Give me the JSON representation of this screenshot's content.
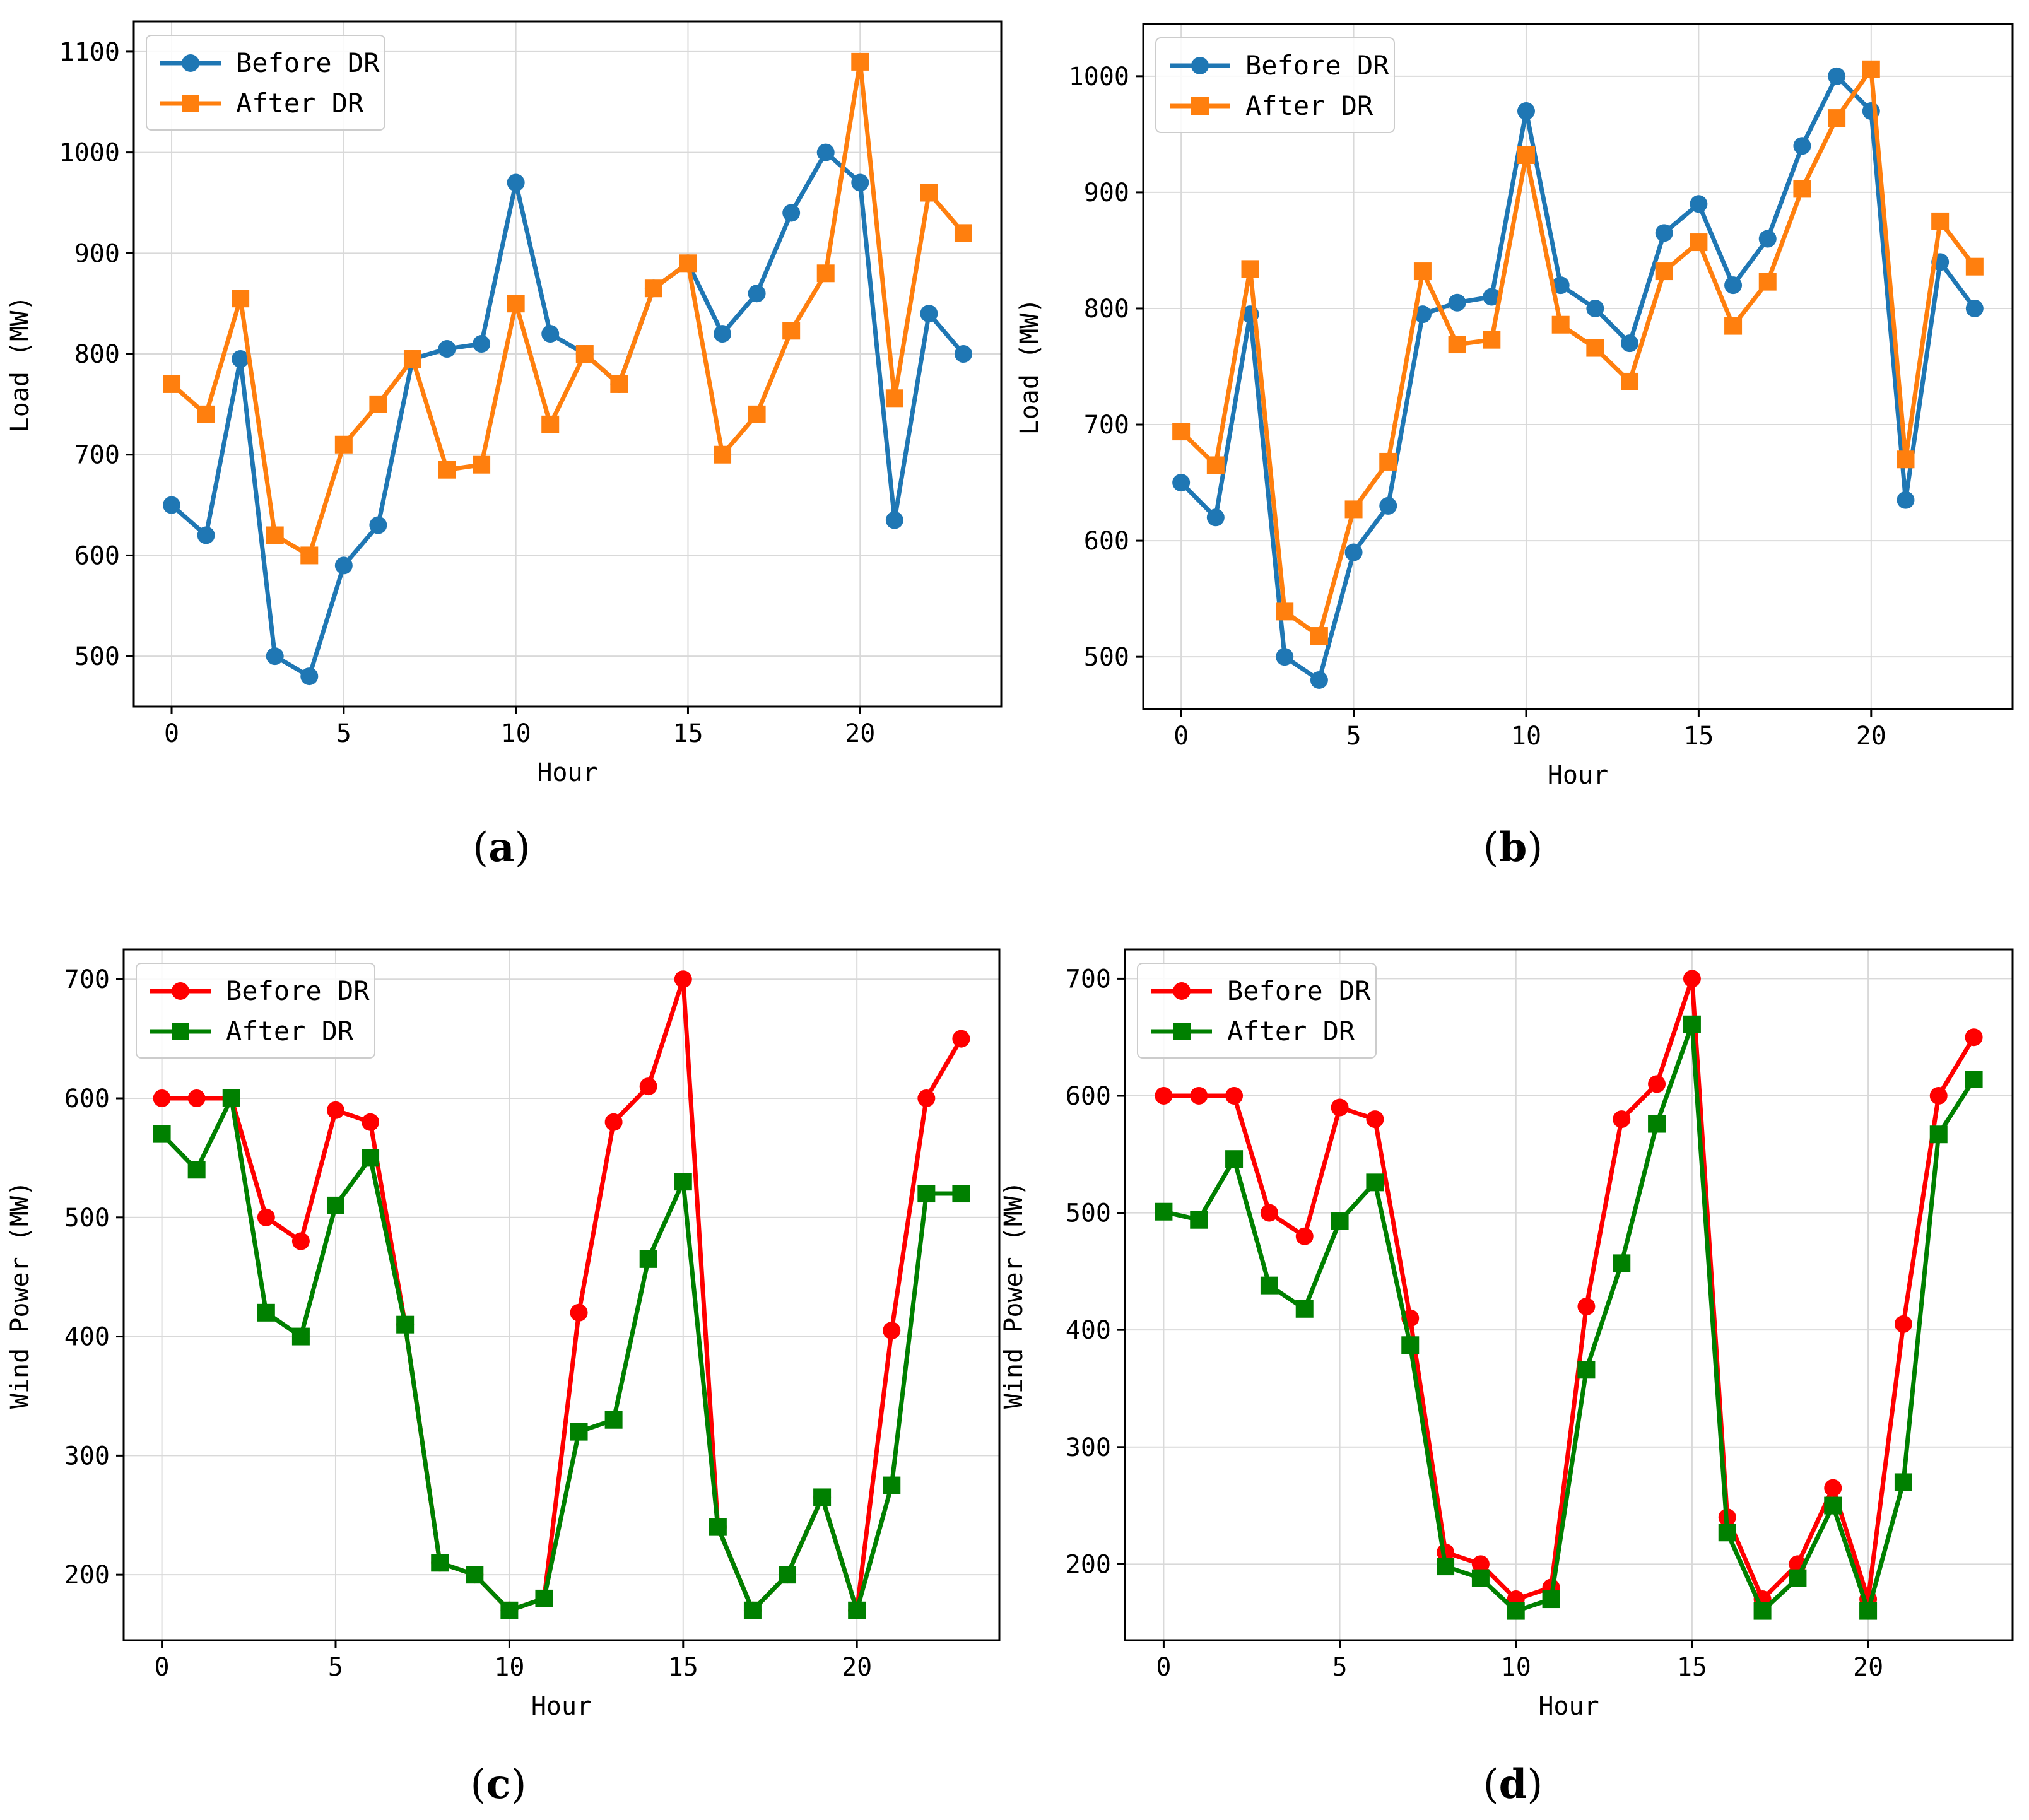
{
  "chart_data": [
    {
      "id": "a",
      "type": "line",
      "panel_label": "a",
      "title": "",
      "xlabel": "Hour",
      "ylabel": "Load (MW)",
      "xlim": [
        -1.1,
        24.1
      ],
      "ylim": [
        450,
        1130
      ],
      "xticks": [
        0,
        5,
        10,
        15,
        20
      ],
      "yticks": [
        500,
        600,
        700,
        800,
        900,
        1000,
        1100
      ],
      "grid": true,
      "legend_position": "top-left",
      "x": [
        0,
        1,
        2,
        3,
        4,
        5,
        6,
        7,
        8,
        9,
        10,
        11,
        12,
        13,
        14,
        15,
        16,
        17,
        18,
        19,
        20,
        21,
        22,
        23
      ],
      "series": [
        {
          "name": "Before DR",
          "color": "#1f77b4",
          "marker": "circle",
          "values": [
            650,
            620,
            795,
            500,
            480,
            590,
            630,
            795,
            805,
            810,
            970,
            820,
            800,
            770,
            865,
            890,
            820,
            860,
            940,
            1000,
            970,
            635,
            840,
            800
          ]
        },
        {
          "name": "After DR",
          "color": "#ff7f0e",
          "marker": "square",
          "values": [
            770,
            740,
            855,
            620,
            600,
            710,
            750,
            795,
            685,
            690,
            850,
            730,
            800,
            770,
            865,
            890,
            700,
            740,
            823,
            880,
            1090,
            756,
            960,
            920
          ]
        }
      ]
    },
    {
      "id": "b",
      "type": "line",
      "panel_label": "b",
      "title": "",
      "xlabel": "Hour",
      "ylabel": "Load (MW)",
      "xlim": [
        -1.1,
        24.1
      ],
      "ylim": [
        455,
        1045
      ],
      "xticks": [
        0,
        5,
        10,
        15,
        20
      ],
      "yticks": [
        500,
        600,
        700,
        800,
        900,
        1000
      ],
      "grid": true,
      "legend_position": "top-left",
      "x": [
        0,
        1,
        2,
        3,
        4,
        5,
        6,
        7,
        8,
        9,
        10,
        11,
        12,
        13,
        14,
        15,
        16,
        17,
        18,
        19,
        20,
        21,
        22,
        23
      ],
      "series": [
        {
          "name": "Before DR",
          "color": "#1f77b4",
          "marker": "circle",
          "values": [
            650,
            620,
            795,
            500,
            480,
            590,
            630,
            795,
            805,
            810,
            970,
            820,
            800,
            770,
            865,
            890,
            820,
            860,
            940,
            1000,
            970,
            635,
            840,
            800
          ]
        },
        {
          "name": "After DR",
          "color": "#ff7f0e",
          "marker": "square",
          "values": [
            694,
            665,
            834,
            539,
            518,
            627,
            668,
            832,
            769,
            773,
            932,
            786,
            766,
            737,
            832,
            857,
            785,
            823,
            903,
            964,
            1006,
            670,
            875,
            836
          ]
        }
      ]
    },
    {
      "id": "c",
      "type": "line",
      "panel_label": "c",
      "title": "",
      "xlabel": "Hour",
      "ylabel": "Wind Power (MW)",
      "xlim": [
        -1.1,
        24.1
      ],
      "ylim": [
        145,
        725
      ],
      "xticks": [
        0,
        5,
        10,
        15,
        20
      ],
      "yticks": [
        200,
        300,
        400,
        500,
        600,
        700
      ],
      "grid": true,
      "legend_position": "top-left",
      "x": [
        0,
        1,
        2,
        3,
        4,
        5,
        6,
        7,
        8,
        9,
        10,
        11,
        12,
        13,
        14,
        15,
        16,
        17,
        18,
        19,
        20,
        21,
        22,
        23
      ],
      "series": [
        {
          "name": "Before DR",
          "color": "#ff0000",
          "marker": "circle",
          "values": [
            600,
            600,
            600,
            500,
            480,
            590,
            580,
            410,
            210,
            200,
            170,
            180,
            420,
            580,
            610,
            700,
            240,
            170,
            200,
            265,
            170,
            405,
            600,
            650
          ]
        },
        {
          "name": "After DR",
          "color": "#008000",
          "marker": "square",
          "values": [
            570,
            540,
            600,
            420,
            400,
            510,
            550,
            410,
            210,
            200,
            170,
            180,
            320,
            330,
            465,
            530,
            240,
            170,
            200,
            265,
            170,
            275,
            520,
            520
          ]
        }
      ]
    },
    {
      "id": "d",
      "type": "line",
      "panel_label": "d",
      "title": "",
      "xlabel": "Hour",
      "ylabel": "Wind Power (MW)",
      "xlim": [
        -1.1,
        24.1
      ],
      "ylim": [
        135,
        725
      ],
      "xticks": [
        0,
        5,
        10,
        15,
        20
      ],
      "yticks": [
        200,
        300,
        400,
        500,
        600,
        700
      ],
      "grid": true,
      "legend_position": "top-left",
      "x": [
        0,
        1,
        2,
        3,
        4,
        5,
        6,
        7,
        8,
        9,
        10,
        11,
        12,
        13,
        14,
        15,
        16,
        17,
        18,
        19,
        20,
        21,
        22,
        23
      ],
      "series": [
        {
          "name": "Before DR",
          "color": "#ff0000",
          "marker": "circle",
          "values": [
            600,
            600,
            600,
            500,
            480,
            590,
            580,
            410,
            210,
            200,
            170,
            180,
            420,
            580,
            610,
            700,
            240,
            170,
            200,
            265,
            170,
            405,
            600,
            650
          ]
        },
        {
          "name": "After DR",
          "color": "#008000",
          "marker": "square",
          "values": [
            501,
            494,
            546,
            438,
            418,
            493,
            526,
            387,
            198,
            188,
            160,
            170,
            366,
            457,
            576,
            661,
            227,
            160,
            188,
            250,
            160,
            270,
            567,
            614
          ]
        }
      ]
    }
  ]
}
